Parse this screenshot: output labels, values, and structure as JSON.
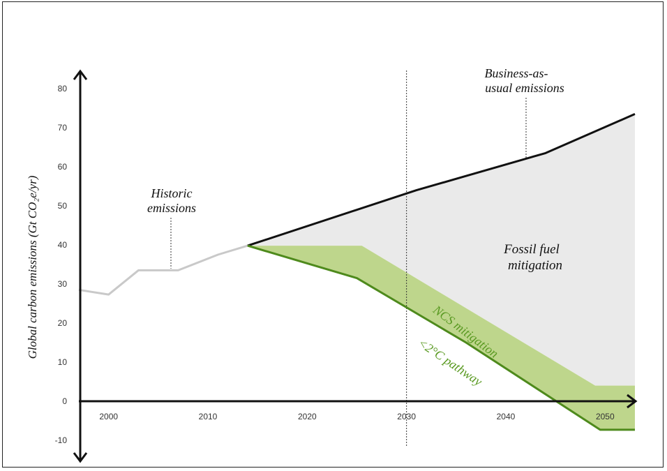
{
  "chart_data": {
    "type": "area",
    "title": "",
    "ylabel": "Global carbon emissions (Gt CO₂e/yr)",
    "xlabel": "",
    "xlim": [
      1997,
      2053
    ],
    "ylim": [
      -10,
      80
    ],
    "x_ticks": [
      "2000",
      "2010",
      "2020",
      "2030",
      "2040",
      "2050"
    ],
    "y_ticks": [
      "80",
      "70",
      "60",
      "50",
      "40",
      "30",
      "20",
      "10",
      "0",
      "-10"
    ],
    "series": [
      {
        "key": "historic",
        "points": [
          [
            1997,
            28.5
          ],
          [
            2000,
            27.3
          ],
          [
            2003,
            33.5
          ],
          [
            2007,
            33.5
          ],
          [
            2011,
            37.5
          ],
          [
            2014,
            39.8
          ]
        ]
      },
      {
        "key": "bau",
        "points": [
          [
            2014,
            39.8
          ],
          [
            2031,
            54
          ],
          [
            2044,
            63.5
          ],
          [
            2053,
            73.5
          ]
        ]
      },
      {
        "key": "pathway",
        "points": [
          [
            2014,
            39.8
          ],
          [
            2025,
            31.5
          ],
          [
            2036,
            15
          ],
          [
            2049.5,
            -7.3
          ],
          [
            2053,
            -7.3
          ]
        ]
      },
      {
        "key": "ncs_upper",
        "points": [
          [
            2014,
            39.8
          ],
          [
            2025.5,
            39.8
          ],
          [
            2049,
            4
          ],
          [
            2053,
            4
          ]
        ]
      }
    ],
    "vline_x": 2030,
    "labels": {
      "historic": [
        "Historic",
        "emissions"
      ],
      "bau": [
        "Business-as-",
        "usual emissions"
      ],
      "fossil": [
        "Fossil fuel",
        "mitigation"
      ],
      "ncs": "NCS mitigation",
      "pathway": "<2°C pathway"
    },
    "colors": {
      "historic": "#c9c9c9",
      "bau": "#111111",
      "fossil_fill": "#eaeaea",
      "ncs_fill": "#bed68c",
      "pathway": "#4e8a1c",
      "ncs_text": "#5a9a22"
    }
  }
}
